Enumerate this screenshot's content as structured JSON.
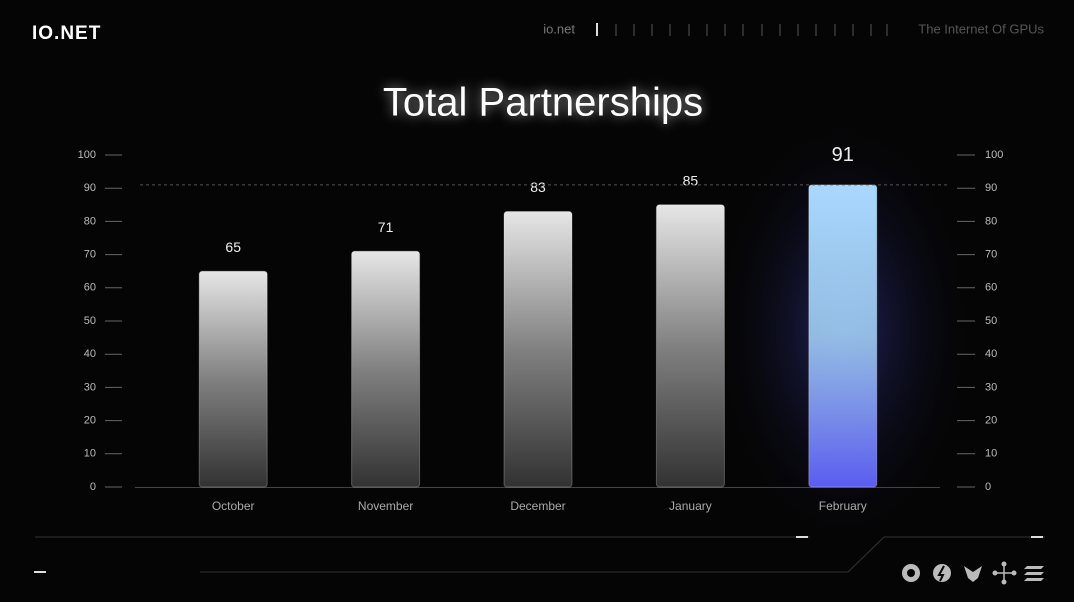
{
  "header": {
    "logo": "IO.NET",
    "site": "io.net",
    "tagline": "The Internet Of GPUs"
  },
  "chart_data": {
    "type": "bar",
    "title": "Total Partnerships",
    "categories": [
      "October",
      "November",
      "December",
      "January",
      "February"
    ],
    "values": [
      65,
      71,
      83,
      85,
      91
    ],
    "colors": [
      "#e6e6e6",
      "#e6e6e6",
      "#e6e6e6",
      "#e6e6e6",
      "#a9d8ff"
    ],
    "ylim": [
      0,
      100
    ],
    "yticks": [
      0,
      10,
      20,
      30,
      40,
      50,
      60,
      70,
      80,
      90,
      100
    ],
    "y2lim": [
      0,
      100
    ],
    "y2ticks": [
      0,
      10,
      20,
      30,
      40,
      50,
      60,
      70,
      80,
      90,
      100
    ]
  }
}
